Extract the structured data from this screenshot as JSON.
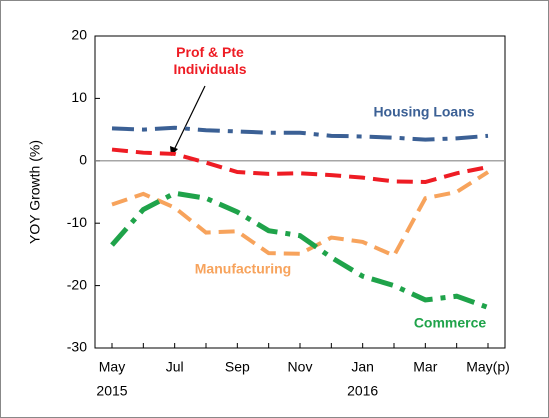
{
  "chart_data": {
    "type": "line",
    "ylabel": "YOY Growth (%)",
    "categories": [
      "May",
      null,
      "Jul",
      null,
      "Sep",
      null,
      "Nov",
      null,
      "Jan",
      null,
      "Mar",
      null,
      "May(p)"
    ],
    "x_sublabels": [
      "2015",
      null,
      null,
      null,
      null,
      null,
      null,
      null,
      "2016",
      null,
      null,
      null,
      null
    ],
    "ylim": [
      -30,
      20
    ],
    "yticks": [
      20,
      10,
      0,
      -10,
      -20,
      -30
    ],
    "series": [
      {
        "name": "Housing Loans",
        "color": "#3b6095",
        "style": "dashdot",
        "values": [
          5.2,
          5.0,
          5.3,
          4.9,
          4.7,
          4.5,
          4.5,
          4.0,
          3.9,
          3.7,
          3.4,
          3.6,
          4.0
        ]
      },
      {
        "name": "Prof & Pte Individuals",
        "color": "#ee1c24",
        "style": "dashed",
        "values": [
          1.8,
          1.3,
          1.1,
          -0.3,
          -1.8,
          -2.1,
          -2.0,
          -2.3,
          -2.7,
          -3.3,
          -3.4,
          -2.0,
          -1.0
        ]
      },
      {
        "name": "Manufacturing",
        "color": "#f7a35c",
        "style": "dashed",
        "values": [
          -7.0,
          -5.3,
          -7.5,
          -11.5,
          -11.3,
          -14.8,
          -14.9,
          -12.3,
          -13.0,
          -15.2,
          -6.0,
          -5.0,
          -1.8
        ]
      },
      {
        "name": "Commerce",
        "color": "#1fa34a",
        "style": "dashdot",
        "values": [
          -13.5,
          -7.8,
          -5.2,
          -6.0,
          -8.2,
          -11.2,
          -12.0,
          -15.5,
          -18.5,
          -20.0,
          -22.3,
          -21.7,
          -23.5
        ]
      }
    ]
  }
}
